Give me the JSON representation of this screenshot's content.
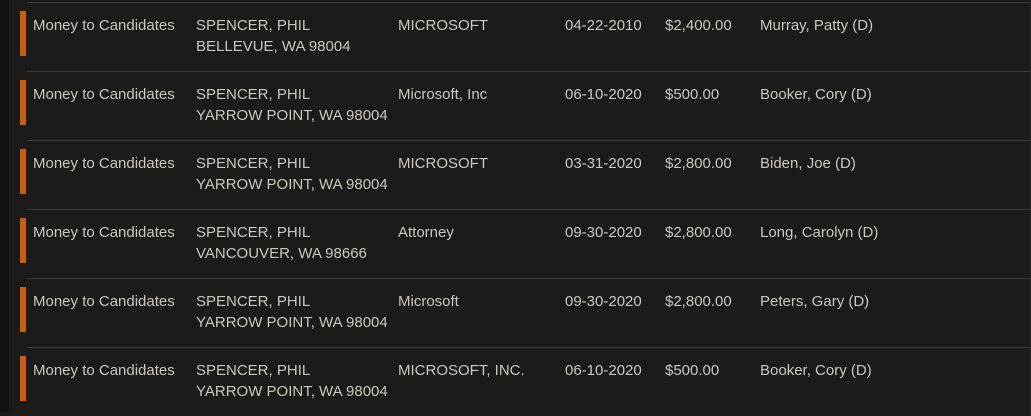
{
  "page": {
    "background_color": "#1d1b19",
    "gutter_color": "#121110",
    "divider_color": "#3e3b38",
    "accent_color": "#c75e12",
    "text_color": "#ccc6bc"
  },
  "table": {
    "rows": [
      {
        "type": "Money to Candidates",
        "name": "SPENCER, PHIL",
        "address": "BELLEVUE, WA 98004",
        "employer": "MICROSOFT",
        "date": "04-22-2010",
        "amount": "$2,400.00",
        "candidate": "Murray, Patty (D)"
      },
      {
        "type": "Money to Candidates",
        "name": "SPENCER, PHIL",
        "address": "YARROW POINT, WA 98004",
        "employer": "Microsoft, Inc",
        "date": "06-10-2020",
        "amount": "$500.00",
        "candidate": "Booker, Cory (D)"
      },
      {
        "type": "Money to Candidates",
        "name": "SPENCER, PHIL",
        "address": "YARROW POINT, WA 98004",
        "employer": "MICROSOFT",
        "date": "03-31-2020",
        "amount": "$2,800.00",
        "candidate": "Biden, Joe (D)"
      },
      {
        "type": "Money to Candidates",
        "name": "SPENCER, PHIL",
        "address": "VANCOUVER, WA 98666",
        "employer": "Attorney",
        "date": "09-30-2020",
        "amount": "$2,800.00",
        "candidate": "Long, Carolyn (D)"
      },
      {
        "type": "Money to Candidates",
        "name": "SPENCER, PHIL",
        "address": "YARROW POINT, WA 98004",
        "employer": "Microsoft",
        "date": "09-30-2020",
        "amount": "$2,800.00",
        "candidate": "Peters, Gary (D)"
      },
      {
        "type": "Money to Candidates",
        "name": "SPENCER, PHIL",
        "address": "YARROW POINT, WA 98004",
        "employer": "MICROSOFT, INC.",
        "date": "06-10-2020",
        "amount": "$500.00",
        "candidate": "Booker, Cory (D)"
      }
    ]
  }
}
